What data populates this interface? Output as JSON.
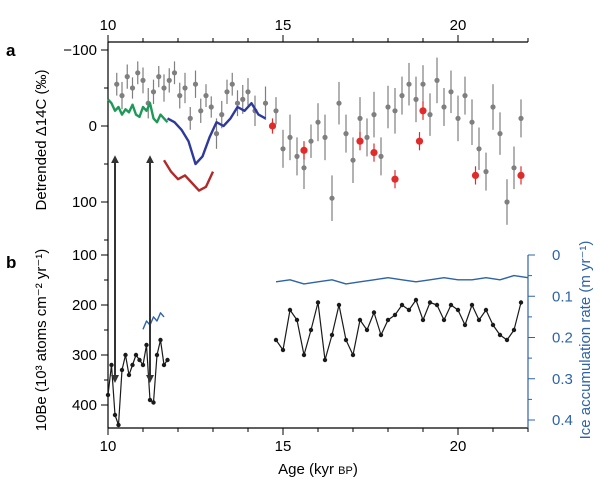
{
  "chart_data": [
    {
      "panel": "a",
      "type": "scatter",
      "panel_label": "a",
      "ylabel": "Detrended Δ14C (‰)",
      "xlim": [
        10,
        22
      ],
      "x_ticks": [
        10,
        15,
        20
      ],
      "x_tick_labels": [
        "10",
        "15",
        "20"
      ],
      "ylim": [
        -100,
        150
      ],
      "y_inverted": true,
      "y_ticks": [
        -100,
        0,
        100
      ],
      "y_tick_labels": [
        "−100",
        "0",
        "100"
      ],
      "series": [
        {
          "color": "#7f7f7f",
          "style": "points-with-errorbars",
          "x": [
            10.25,
            10.4,
            10.55,
            10.7,
            10.85,
            11.0,
            11.15,
            11.3,
            11.45,
            11.6,
            11.75,
            11.9,
            12.05,
            12.2,
            12.35,
            12.5,
            12.65,
            12.8,
            12.95,
            13.1,
            13.25,
            13.4,
            13.55,
            13.7,
            13.85,
            14.0,
            14.2,
            14.5,
            14.8,
            15.0,
            15.2,
            15.4,
            15.6,
            15.8,
            16.0,
            16.2,
            16.4,
            16.6,
            16.8,
            17.0,
            17.2,
            17.4,
            17.6,
            17.8,
            18.0,
            18.2,
            18.4,
            18.6,
            18.8,
            19.0,
            19.2,
            19.4,
            19.6,
            19.8,
            20.0,
            20.2,
            20.4,
            20.6,
            20.8,
            21.0,
            21.2,
            21.4,
            21.6,
            21.8
          ],
          "y": [
            -55,
            -40,
            -65,
            -50,
            -70,
            -60,
            -30,
            -45,
            -65,
            -50,
            -60,
            -70,
            -40,
            -50,
            -10,
            -55,
            -20,
            -40,
            -25,
            10,
            -15,
            -45,
            -55,
            -30,
            -35,
            -45,
            -20,
            -30,
            -20,
            30,
            15,
            40,
            55,
            20,
            -5,
            15,
            95,
            -30,
            10,
            45,
            -10,
            15,
            -15,
            40,
            -25,
            -20,
            -40,
            -55,
            -35,
            -55,
            -15,
            -60,
            -25,
            -45,
            -10,
            -40,
            -5,
            30,
            60,
            -25,
            10,
            100,
            55,
            -10
          ],
          "yerr": [
            15,
            18,
            16,
            14,
            15,
            17,
            20,
            16,
            14,
            18,
            16,
            15,
            17,
            20,
            15,
            18,
            16,
            15,
            14,
            20,
            18,
            16,
            15,
            17,
            19,
            18,
            20,
            22,
            18,
            25,
            30,
            25,
            28,
            22,
            25,
            30,
            30,
            28,
            25,
            30,
            28,
            25,
            30,
            25,
            28,
            30,
            25,
            28,
            30,
            25,
            28,
            30,
            25,
            28,
            30,
            25,
            30,
            28,
            25,
            30,
            28,
            30,
            28,
            25
          ]
        },
        {
          "color": "#1d9a57",
          "style": "line",
          "x": [
            10.0,
            10.1,
            10.2,
            10.3,
            10.4,
            10.5,
            10.6,
            10.7,
            10.8,
            10.9,
            11.0,
            11.1,
            11.2,
            11.3,
            11.4,
            11.5,
            11.6,
            11.7
          ],
          "y": [
            -35,
            -30,
            -20,
            -25,
            -15,
            -22,
            -18,
            -28,
            -15,
            -12,
            -25,
            -20,
            -30,
            -10,
            -5,
            -15,
            -10,
            -5
          ]
        },
        {
          "color": "#2d3a9c",
          "style": "line",
          "x": [
            11.7,
            11.9,
            12.1,
            12.3,
            12.5,
            12.7,
            12.9,
            13.1,
            13.3,
            13.5,
            13.7,
            13.9,
            14.1,
            14.3,
            14.5
          ],
          "y": [
            -10,
            -5,
            5,
            20,
            50,
            40,
            15,
            -5,
            0,
            -10,
            -25,
            -20,
            -30,
            -15,
            -10
          ]
        },
        {
          "color": "#b02a2a",
          "style": "line",
          "x": [
            11.6,
            11.8,
            12.0,
            12.2,
            12.4,
            12.6,
            12.8,
            13.0
          ],
          "y": [
            45,
            60,
            70,
            65,
            75,
            85,
            80,
            60
          ]
        },
        {
          "color": "#e02b2b",
          "style": "points-with-errorbars",
          "x": [
            14.7,
            15.6,
            17.2,
            17.6,
            18.2,
            18.9,
            19.0,
            20.5,
            21.8
          ],
          "y": [
            0,
            32,
            20,
            35,
            70,
            20,
            -20,
            65,
            65
          ],
          "yerr": [
            10,
            12,
            12,
            12,
            12,
            12,
            12,
            12,
            12
          ]
        }
      ],
      "annotations": {
        "arrows_x": [
          10.2,
          11.2
        ],
        "arrows_y_top": [
          20,
          20
        ],
        "arrows_y_bottom": [
          340,
          340
        ]
      }
    },
    {
      "panel": "b",
      "type": "line",
      "panel_label": "b",
      "xlabel_main": "Age (kyr ",
      "xlabel_unit": "BP",
      "xlabel_close": ")",
      "ylabel_left": "10Be (10³ atoms cm⁻² yr⁻¹)",
      "ylabel_right": "Ice accumulation rate (m yr⁻¹)",
      "xlim": [
        10,
        22
      ],
      "x_ticks": [
        10,
        15,
        20
      ],
      "x_tick_labels": [
        "10",
        "15",
        "20"
      ],
      "ylim_left": [
        100,
        430
      ],
      "y_left_ticks": [
        100,
        200,
        300,
        400
      ],
      "y_left_tick_labels": [
        "100",
        "200",
        "300",
        "400"
      ],
      "ylim_right": [
        0,
        0.4
      ],
      "y_right_ticks": [
        0,
        0.1,
        0.2,
        0.3,
        0.4
      ],
      "y_right_tick_labels": [
        "0",
        "0.1",
        "0.2",
        "0.3",
        "0.4"
      ],
      "series": [
        {
          "axis": "left",
          "color": "#1a1a1a",
          "style": "line-with-points",
          "x": [
            10.0,
            10.1,
            10.2,
            10.3,
            10.4,
            10.5,
            10.6,
            10.7,
            10.8,
            10.9,
            11.0,
            11.1,
            11.2,
            11.3,
            11.4,
            11.5,
            11.6,
            11.7
          ],
          "y": [
            380,
            320,
            420,
            440,
            330,
            300,
            340,
            320,
            300,
            310,
            320,
            280,
            390,
            395,
            300,
            270,
            320,
            310
          ]
        },
        {
          "axis": "left",
          "color": "#1a1a1a",
          "style": "line-with-points",
          "x": [
            14.8,
            15.0,
            15.2,
            15.4,
            15.6,
            15.8,
            16.0,
            16.2,
            16.4,
            16.6,
            16.8,
            17.0,
            17.2,
            17.4,
            17.6,
            17.8,
            18.0,
            18.2,
            18.4,
            18.6,
            18.8,
            19.0,
            19.2,
            19.4,
            19.6,
            19.8,
            20.0,
            20.2,
            20.4,
            20.6,
            20.8,
            21.0,
            21.2,
            21.4,
            21.6,
            21.8
          ],
          "y": [
            270,
            290,
            210,
            230,
            300,
            250,
            195,
            310,
            260,
            200,
            270,
            300,
            230,
            250,
            215,
            260,
            230,
            220,
            200,
            210,
            190,
            230,
            195,
            200,
            230,
            200,
            210,
            240,
            200,
            230,
            210,
            240,
            260,
            270,
            250,
            195
          ]
        },
        {
          "axis": "right",
          "color": "#2e63a6",
          "style": "line",
          "x": [
            11.0,
            11.1,
            11.2,
            11.3,
            11.4,
            11.5,
            11.6
          ],
          "y": [
            0.18,
            0.16,
            0.17,
            0.15,
            0.16,
            0.14,
            0.15
          ]
        },
        {
          "axis": "right",
          "color": "#2e63a6",
          "style": "line",
          "x": [
            14.8,
            15.2,
            15.6,
            16.0,
            16.4,
            16.8,
            17.2,
            17.6,
            18.0,
            18.4,
            18.8,
            19.2,
            19.6,
            20.0,
            20.4,
            20.8,
            21.2,
            21.6,
            22.0
          ],
          "y": [
            0.065,
            0.06,
            0.07,
            0.065,
            0.06,
            0.07,
            0.065,
            0.06,
            0.055,
            0.06,
            0.065,
            0.06,
            0.055,
            0.06,
            0.06,
            0.055,
            0.06,
            0.05,
            0.055
          ]
        }
      ]
    }
  ]
}
